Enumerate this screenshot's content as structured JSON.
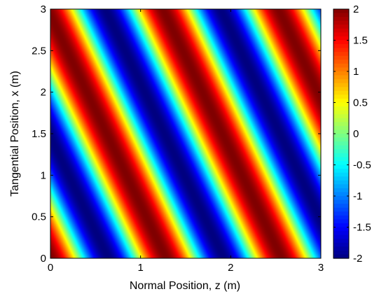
{
  "chart_data": {
    "type": "heatmap",
    "title": "",
    "xlabel": "Normal Position, z (m)",
    "ylabel": "Tangential Position, x (m)",
    "xlim": [
      0,
      3
    ],
    "ylim": [
      0,
      3
    ],
    "xticks": [
      "0",
      "1",
      "2",
      "3"
    ],
    "yticks": [
      "0",
      "0.5",
      "1",
      "1.5",
      "2",
      "2.5",
      "3"
    ],
    "colorbar": {
      "colormap": "jet",
      "range": [
        -2,
        2
      ],
      "ticks": [
        "-2",
        "-1.5",
        "-1",
        "-0.5",
        "0",
        "0.5",
        "1",
        "1.5",
        "2"
      ]
    },
    "field": {
      "expression": "2*cos(kz*z + kx*x)",
      "amplitude": 2,
      "kz": 4.9,
      "kx": 2.15,
      "phase": 0
    },
    "grid": false
  }
}
